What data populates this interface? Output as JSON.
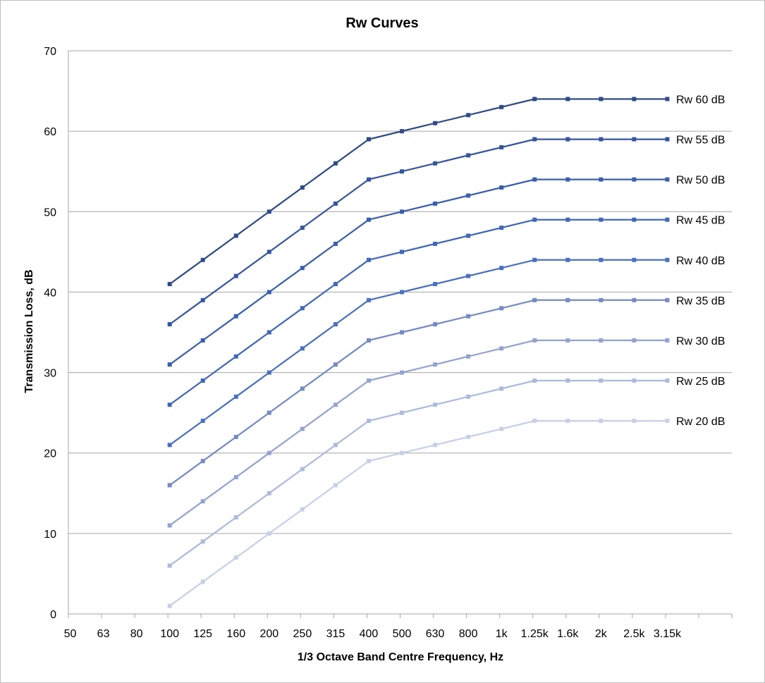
{
  "chart_data": {
    "type": "line",
    "title": "Rw Curves",
    "xlabel": "1/3 Octave Band Centre Frequency, Hz",
    "ylabel": "Transmission Loss, dB",
    "ylim": [
      0,
      70
    ],
    "ytick_step": 10,
    "grid": "horizontal",
    "categories": [
      "50",
      "63",
      "80",
      "100",
      "125",
      "160",
      "200",
      "250",
      "315",
      "400",
      "500",
      "630",
      "800",
      "1k",
      "1.25k",
      "1.6k",
      "2k",
      "2.5k",
      "3.15k",
      ""
    ],
    "series": [
      {
        "name": "Rw 60 dB",
        "color": "#2f4b87",
        "values": [
          null,
          null,
          null,
          41,
          44,
          47,
          50,
          53,
          56,
          59,
          60,
          61,
          62,
          63,
          64,
          64,
          64,
          64,
          64,
          null
        ]
      },
      {
        "name": "Rw 55 dB",
        "color": "#3555a0",
        "values": [
          null,
          null,
          null,
          36,
          39,
          42,
          45,
          48,
          51,
          54,
          55,
          56,
          57,
          58,
          59,
          59,
          59,
          59,
          59,
          null
        ]
      },
      {
        "name": "Rw 50 dB",
        "color": "#3a5eae",
        "values": [
          null,
          null,
          null,
          31,
          34,
          37,
          40,
          43,
          46,
          49,
          50,
          51,
          52,
          53,
          54,
          54,
          54,
          54,
          54,
          null
        ]
      },
      {
        "name": "Rw 45 dB",
        "color": "#4167b8",
        "values": [
          null,
          null,
          null,
          26,
          29,
          32,
          35,
          38,
          41,
          44,
          45,
          46,
          47,
          48,
          49,
          49,
          49,
          49,
          49,
          null
        ]
      },
      {
        "name": "Rw 40 dB",
        "color": "#4a70c0",
        "values": [
          null,
          null,
          null,
          21,
          24,
          27,
          30,
          33,
          36,
          39,
          40,
          41,
          42,
          43,
          44,
          44,
          44,
          44,
          44,
          null
        ]
      },
      {
        "name": "Rw 35 dB",
        "color": "#7589c4",
        "values": [
          null,
          null,
          null,
          16,
          19,
          22,
          25,
          28,
          31,
          34,
          35,
          36,
          37,
          38,
          39,
          39,
          39,
          39,
          39,
          null
        ]
      },
      {
        "name": "Rw 30 dB",
        "color": "#93a3d1",
        "values": [
          null,
          null,
          null,
          11,
          14,
          17,
          20,
          23,
          26,
          29,
          30,
          31,
          32,
          33,
          34,
          34,
          34,
          34,
          34,
          null
        ]
      },
      {
        "name": "Rw 25 dB",
        "color": "#acbadd",
        "values": [
          null,
          null,
          null,
          6,
          9,
          12,
          15,
          18,
          21,
          24,
          25,
          26,
          27,
          28,
          29,
          29,
          29,
          29,
          29,
          null
        ]
      },
      {
        "name": "Rw 20 dB",
        "color": "#c6d0e8",
        "values": [
          null,
          null,
          null,
          1,
          4,
          7,
          10,
          13,
          16,
          19,
          20,
          21,
          22,
          23,
          24,
          24,
          24,
          24,
          24,
          null
        ]
      }
    ]
  }
}
